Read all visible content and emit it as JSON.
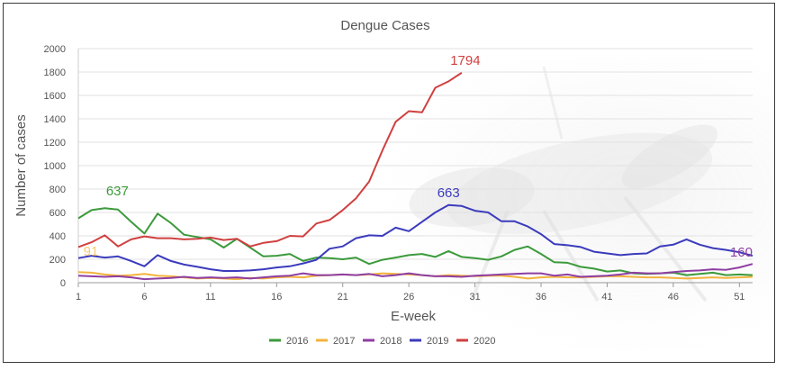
{
  "chart_data": {
    "type": "line",
    "title": "Dengue Cases",
    "xlabel": "E-week",
    "ylabel": "Number of cases",
    "xlim": [
      1,
      52
    ],
    "ylim": [
      0,
      2000
    ],
    "x_ticks": [
      1,
      6,
      11,
      16,
      21,
      26,
      31,
      36,
      41,
      46,
      51
    ],
    "y_ticks": [
      0,
      200,
      400,
      600,
      800,
      1000,
      1200,
      1400,
      1600,
      1800,
      2000
    ],
    "grid": "horizontal",
    "legend_position": "bottom",
    "series": [
      {
        "name": "2016",
        "color": "#3c9a3c",
        "values": [
          550,
          620,
          637,
          625,
          520,
          420,
          590,
          510,
          410,
          390,
          370,
          300,
          375,
          300,
          225,
          230,
          245,
          185,
          215,
          210,
          200,
          215,
          160,
          195,
          215,
          235,
          245,
          220,
          270,
          220,
          210,
          195,
          225,
          280,
          310,
          245,
          175,
          170,
          135,
          120,
          95,
          105,
          80,
          75,
          80,
          85,
          65,
          75,
          85,
          65,
          70,
          65
        ]
      },
      {
        "name": "2017",
        "color": "#f3b33d",
        "values": [
          91,
          85,
          70,
          60,
          65,
          75,
          60,
          55,
          45,
          35,
          40,
          35,
          30,
          40,
          35,
          45,
          50,
          45,
          60,
          65,
          70,
          65,
          70,
          80,
          75,
          70,
          65,
          55,
          65,
          60,
          55,
          60,
          60,
          50,
          35,
          45,
          50,
          45,
          45,
          50,
          55,
          55,
          50,
          45,
          45,
          40,
          35,
          40,
          45,
          40,
          45,
          50
        ]
      },
      {
        "name": "2018",
        "color": "#8e3ea3",
        "values": [
          60,
          55,
          50,
          55,
          45,
          30,
          35,
          40,
          50,
          40,
          45,
          40,
          45,
          35,
          45,
          55,
          60,
          80,
          65,
          65,
          70,
          65,
          75,
          55,
          65,
          80,
          65,
          55,
          55,
          50,
          60,
          65,
          70,
          75,
          80,
          80,
          60,
          70,
          50,
          55,
          60,
          70,
          85,
          80,
          80,
          90,
          100,
          105,
          115,
          110,
          130,
          160
        ]
      },
      {
        "name": "2019",
        "color": "#3b3bbd",
        "values": [
          210,
          230,
          215,
          225,
          185,
          140,
          235,
          185,
          155,
          135,
          115,
          100,
          100,
          105,
          115,
          130,
          140,
          165,
          195,
          290,
          310,
          380,
          405,
          400,
          470,
          440,
          520,
          600,
          663,
          655,
          615,
          600,
          525,
          525,
          480,
          415,
          330,
          320,
          305,
          265,
          250,
          235,
          245,
          250,
          310,
          325,
          370,
          325,
          295,
          280,
          260,
          230
        ]
      },
      {
        "name": "2020",
        "color": "#d04040",
        "values": [
          305,
          345,
          405,
          310,
          370,
          395,
          380,
          380,
          370,
          375,
          385,
          365,
          375,
          310,
          340,
          355,
          400,
          395,
          505,
          535,
          620,
          720,
          865,
          1130,
          1375,
          1465,
          1455,
          1665,
          1720,
          1794
        ]
      }
    ],
    "annotations": [
      {
        "series": "2016",
        "week": 3,
        "value": "637"
      },
      {
        "series": "2017",
        "week": 1,
        "value": "91"
      },
      {
        "series": "2019",
        "week": 29,
        "value": "663"
      },
      {
        "series": "2020",
        "week": 30,
        "value": "1794"
      },
      {
        "series": "2018",
        "week": 52,
        "value": "160"
      }
    ]
  }
}
